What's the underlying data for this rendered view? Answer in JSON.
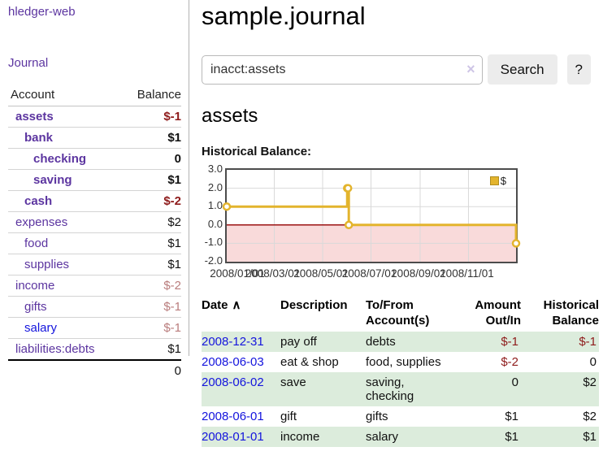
{
  "brand": "hledger-web",
  "sidebar": {
    "journal_link": "Journal",
    "accounts": {
      "col_account": "Account",
      "col_balance": "Balance",
      "rows": [
        {
          "name": "assets",
          "balance": "$-1",
          "depth": 1,
          "bold": true,
          "balance_style": "negative",
          "link_style": "visited"
        },
        {
          "name": "bank",
          "balance": "$1",
          "depth": 2,
          "bold": true,
          "balance_style": "normal",
          "link_style": "visited"
        },
        {
          "name": "checking",
          "balance": "0",
          "depth": 3,
          "bold": true,
          "balance_style": "normal",
          "link_style": "visited"
        },
        {
          "name": "saving",
          "balance": "$1",
          "depth": 3,
          "bold": true,
          "balance_style": "normal",
          "link_style": "visited"
        },
        {
          "name": "cash",
          "balance": "$-2",
          "depth": 2,
          "bold": true,
          "balance_style": "negative",
          "link_style": "visited"
        },
        {
          "name": "expenses",
          "balance": "$2",
          "depth": 1,
          "bold": false,
          "balance_style": "normal",
          "link_style": "visited"
        },
        {
          "name": "food",
          "balance": "$1",
          "depth": 2,
          "bold": false,
          "balance_style": "normal",
          "link_style": "visited"
        },
        {
          "name": "supplies",
          "balance": "$1",
          "depth": 2,
          "bold": false,
          "balance_style": "normal",
          "link_style": "visited"
        },
        {
          "name": "income",
          "balance": "$-2",
          "depth": 1,
          "bold": false,
          "balance_style": "negative-muted",
          "link_style": "visited"
        },
        {
          "name": "gifts",
          "balance": "$-1",
          "depth": 2,
          "bold": false,
          "balance_style": "negative-muted",
          "link_style": "visited"
        },
        {
          "name": "salary",
          "balance": "$-1",
          "depth": 2,
          "bold": false,
          "balance_style": "negative-muted",
          "link_style": "unvisited"
        },
        {
          "name": "liabilities:debts",
          "balance": "$1",
          "depth": 1,
          "bold": false,
          "balance_style": "normal",
          "link_style": "visited"
        }
      ],
      "total": "0"
    }
  },
  "header": {
    "title": "sample.journal"
  },
  "search": {
    "value": "inacct:assets",
    "clear_icon": "×",
    "search_button": "Search",
    "help_button": "?"
  },
  "account_page": {
    "heading": "assets",
    "chart_label": "Historical Balance:"
  },
  "register": {
    "headers": {
      "date": "Date",
      "sort_icon": "∧",
      "description": "Description",
      "accounts": "To/From Account(s)",
      "amount": "Amount Out/In",
      "balance": "Historical Balance"
    },
    "rows": [
      {
        "date": "2008-12-31",
        "description": "pay off",
        "accounts": "debts",
        "amount": "$-1",
        "amount_style": "negative",
        "balance": "$-1",
        "balance_style": "negative"
      },
      {
        "date": "2008-06-03",
        "description": "eat & shop",
        "accounts": "food, supplies",
        "amount": "$-2",
        "amount_style": "negative",
        "balance": "0",
        "balance_style": "normal"
      },
      {
        "date": "2008-06-02",
        "description": "save",
        "accounts": "saving, checking",
        "amount": "0",
        "amount_style": "normal",
        "balance": "$2",
        "balance_style": "normal"
      },
      {
        "date": "2008-06-01",
        "description": "gift",
        "accounts": "gifts",
        "amount": "$1",
        "amount_style": "normal",
        "balance": "$2",
        "balance_style": "normal"
      },
      {
        "date": "2008-01-01",
        "description": "income",
        "accounts": "salary",
        "amount": "$1",
        "amount_style": "normal",
        "balance": "$1",
        "balance_style": "normal"
      }
    ]
  },
  "chart_data": {
    "type": "line",
    "step": true,
    "title": "Historical Balance:",
    "x_range": [
      "2008-01-01",
      "2008-12-31"
    ],
    "ylim": [
      -2,
      3
    ],
    "yticks": [
      3,
      2,
      1,
      0,
      -1,
      -2
    ],
    "xticks": [
      "2008/01/01",
      "2008/03/01",
      "2008/05/01",
      "2008/07/01",
      "2008/09/01",
      "2008/11/01"
    ],
    "series": [
      {
        "name": "$",
        "color": "#e3b42d",
        "marker": "open-circle",
        "points": [
          [
            "2008-01-01",
            1
          ],
          [
            "2008-06-01",
            2
          ],
          [
            "2008-06-02",
            2
          ],
          [
            "2008-06-03",
            0
          ],
          [
            "2008-12-31",
            -1
          ]
        ]
      }
    ],
    "legend_position": "top-right",
    "grid": true,
    "grid_color": "#d9d9d9",
    "negative_region_fill": "#f9dada",
    "zero_line_color": "#9b1313"
  },
  "colors": {
    "link_visited_purple": "#5c35a0",
    "link_unvisited_blue": "#1414dd",
    "negative_red": "#8e1b1b",
    "negative_muted_rose": "#b97c7c",
    "row_shade_green": "#dcecdc",
    "chart_line_gold": "#e3b42d",
    "chart_negative_fill": "#f9dada",
    "chart_zero_line_red": "#9b1313"
  }
}
